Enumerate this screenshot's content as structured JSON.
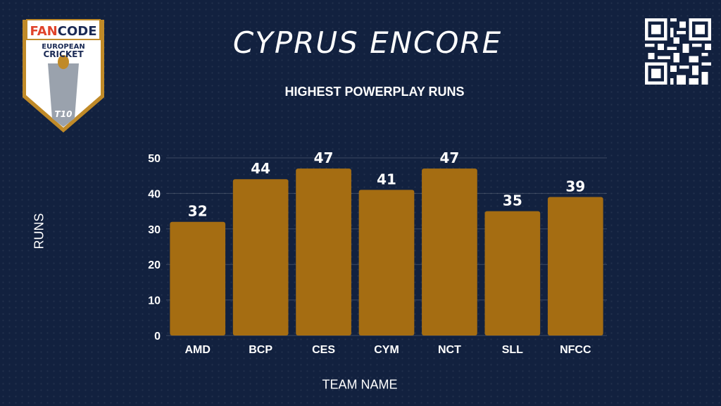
{
  "header": {
    "title": "CYPRUS ENCORE",
    "subtitle": "HIGHEST POWERPLAY RUNS"
  },
  "logo": {
    "brand": "FANCODE",
    "line1": "EUROPEAN",
    "line2": "CRICKET",
    "badge": "T10"
  },
  "qr_icon": "qr-code-icon",
  "colors": {
    "background": "#12213f",
    "bar": "#a56d12",
    "text": "#ffffff",
    "logo_border": "#c08a28"
  },
  "chart_data": {
    "type": "bar",
    "title": "HIGHEST POWERPLAY RUNS",
    "xlabel": "TEAM NAME",
    "ylabel": "RUNS",
    "categories": [
      "AMD",
      "BCP",
      "CES",
      "CYM",
      "NCT",
      "SLL",
      "NFCC"
    ],
    "values": [
      32,
      44,
      47,
      41,
      47,
      35,
      39
    ],
    "ylim": [
      0,
      50
    ],
    "yticks": [
      0,
      10,
      20,
      30,
      40,
      50
    ],
    "grid": true,
    "data_labels": true
  }
}
